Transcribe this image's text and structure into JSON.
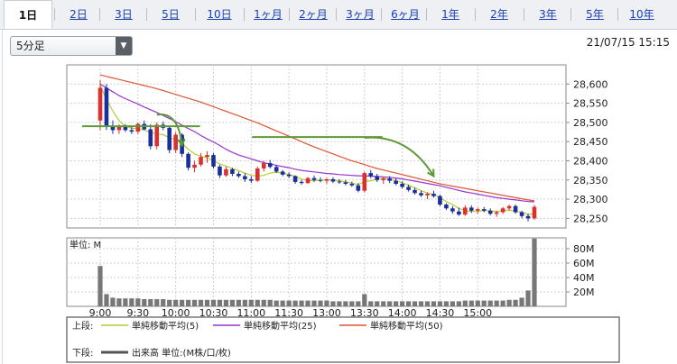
{
  "tabs": [
    "1日",
    "2日",
    "3日",
    "5日",
    "10日",
    "1ヶ月",
    "2ヶ月",
    "3ヶ月",
    "6ヶ月",
    "1年",
    "2年",
    "3年",
    "5年",
    "10年"
  ],
  "active_tab": 0,
  "interval_select": {
    "value": "5分足"
  },
  "datetime": "21/07/15 15:15",
  "legend": {
    "upper_label": "上段:",
    "lower_label": "下段:",
    "sma5": "単純移動平均(5)",
    "sma25": "単純移動平均(25)",
    "sma50": "単純移動平均(50)",
    "volume": "出来高 単位:(M株/口/枚)"
  },
  "colors": {
    "sma5": "#b8cc33",
    "sma25": "#9933cc",
    "sma50": "#dd5533",
    "up": "#d93030",
    "down": "#1a2f9a",
    "volume": "#777777",
    "annotation": "#5e9a3a"
  },
  "chart_data": [
    {
      "type": "candlestick",
      "title": "",
      "interval": "5分足",
      "x_ticks": [
        "9:00",
        "9:30",
        "10:00",
        "10:30",
        "11:00",
        "11:30",
        "13:00",
        "13:30",
        "14:00",
        "14:30",
        "15:00"
      ],
      "y_ticks": [
        28250,
        28300,
        28350,
        28400,
        28450,
        28500,
        28550,
        28600
      ],
      "ylim": [
        28225,
        28650
      ],
      "candles": [
        [
          28505,
          28610,
          28480,
          28590
        ],
        [
          28590,
          28600,
          28480,
          28490
        ],
        [
          28490,
          28505,
          28470,
          28480
        ],
        [
          28480,
          28495,
          28470,
          28488
        ],
        [
          28488,
          28495,
          28475,
          28480
        ],
        [
          28480,
          28490,
          28470,
          28476
        ],
        [
          28476,
          28500,
          28470,
          28496
        ],
        [
          28496,
          28505,
          28480,
          28482
        ],
        [
          28482,
          28495,
          28430,
          28438
        ],
        [
          28438,
          28500,
          28430,
          28494
        ],
        [
          28494,
          28502,
          28480,
          28486
        ],
        [
          28486,
          28490,
          28420,
          28428
        ],
        [
          28428,
          28475,
          28420,
          28468
        ],
        [
          28468,
          28472,
          28410,
          28418
        ],
        [
          28418,
          28422,
          28375,
          28382
        ],
        [
          28382,
          28400,
          28370,
          28390
        ],
        [
          28390,
          28420,
          28385,
          28410
        ],
        [
          28410,
          28425,
          28395,
          28415
        ],
        [
          28415,
          28420,
          28380,
          28385
        ],
        [
          28385,
          28390,
          28355,
          28362
        ],
        [
          28362,
          28385,
          28358,
          28378
        ],
        [
          28378,
          28382,
          28360,
          28366
        ],
        [
          28366,
          28372,
          28355,
          28360
        ],
        [
          28360,
          28368,
          28345,
          28352
        ],
        [
          28352,
          28360,
          28342,
          28348
        ],
        [
          28348,
          28385,
          28345,
          28380
        ],
        [
          28380,
          28400,
          28372,
          28394
        ],
        [
          28394,
          28402,
          28380,
          28384
        ],
        [
          28384,
          28390,
          28368,
          28372
        ],
        [
          28372,
          28376,
          28360,
          28364
        ],
        [
          28364,
          28370,
          28355,
          28360
        ],
        [
          28360,
          28362,
          28340,
          28345
        ],
        [
          28345,
          28350,
          28338,
          28342
        ],
        [
          28342,
          28358,
          28340,
          28355
        ],
        [
          28355,
          28362,
          28345,
          28350
        ],
        [
          28350,
          28357,
          28344,
          28348
        ],
        [
          28348,
          28355,
          28340,
          28352
        ],
        [
          28352,
          28357,
          28342,
          28346
        ],
        [
          28346,
          28352,
          28340,
          28344
        ],
        [
          28344,
          28350,
          28336,
          28340
        ],
        [
          28340,
          28346,
          28332,
          28336
        ],
        [
          28336,
          28342,
          28318,
          28322
        ],
        [
          28322,
          28372,
          28318,
          28368
        ],
        [
          28368,
          28376,
          28355,
          28360
        ],
        [
          28360,
          28366,
          28345,
          28350
        ],
        [
          28350,
          28358,
          28340,
          28354
        ],
        [
          28354,
          28360,
          28342,
          28348
        ],
        [
          28348,
          28354,
          28336,
          28340
        ],
        [
          28340,
          28346,
          28328,
          28332
        ],
        [
          28332,
          28338,
          28320,
          28324
        ],
        [
          28324,
          28330,
          28312,
          28316
        ],
        [
          28316,
          28322,
          28306,
          28310
        ],
        [
          28310,
          28318,
          28300,
          28314
        ],
        [
          28314,
          28322,
          28304,
          28308
        ],
        [
          28308,
          28312,
          28282,
          28286
        ],
        [
          28286,
          28290,
          28272,
          28276
        ],
        [
          28276,
          28282,
          28262,
          28268
        ],
        [
          28268,
          28278,
          28256,
          28260
        ],
        [
          28260,
          28284,
          28256,
          28278
        ],
        [
          28278,
          28284,
          28264,
          28270
        ],
        [
          28270,
          28278,
          28262,
          28274
        ],
        [
          28274,
          28280,
          28266,
          28270
        ],
        [
          28270,
          28276,
          28258,
          28262
        ],
        [
          28262,
          28270,
          28254,
          28266
        ],
        [
          28266,
          28280,
          28262,
          28276
        ],
        [
          28276,
          28286,
          28270,
          28282
        ],
        [
          28282,
          28286,
          28262,
          28266
        ],
        [
          28266,
          28270,
          28250,
          28256
        ],
        [
          28256,
          28262,
          28242,
          28250
        ],
        [
          28250,
          28285,
          28246,
          28280
        ]
      ],
      "sma5": [
        28597,
        28560,
        28530,
        28505,
        28490,
        28485,
        28484,
        28480,
        28474,
        28470,
        28468,
        28460,
        28455,
        28446,
        28430,
        28418,
        28412,
        28408,
        28400,
        28392,
        28386,
        28380,
        28374,
        28368,
        28362,
        28360,
        28362,
        28368,
        28370,
        28368,
        28364,
        28360,
        28352,
        28349,
        28348,
        28350,
        28350,
        28350,
        28348,
        28345,
        28342,
        28338,
        28346,
        28348,
        28352,
        28354,
        28352,
        28348,
        28343,
        28336,
        28330,
        28322,
        28316,
        28312,
        28304,
        28294,
        28286,
        28276,
        28270,
        28268,
        28268,
        28270,
        28270,
        28268,
        28270,
        28272,
        28268,
        28266,
        28260,
        28262
      ],
      "sma25": [
        28600,
        28590,
        28580,
        28570,
        28562,
        28555,
        28548,
        28540,
        28533,
        28526,
        28518,
        28510,
        28502,
        28493,
        28484,
        28476,
        28466,
        28457,
        28449,
        28440,
        28430,
        28422,
        28415,
        28410,
        28405,
        28400,
        28395,
        28392,
        28388,
        28385,
        28382,
        28378,
        28375,
        28373,
        28371,
        28369,
        28367,
        28366,
        28364,
        28363,
        28362,
        28361,
        28361,
        28360,
        28359,
        28358,
        28357,
        28355,
        28353,
        28350,
        28347,
        28344,
        28341,
        28338,
        28335,
        28331,
        28327,
        28323,
        28319,
        28316,
        28313,
        28310,
        28307,
        28304,
        28302,
        28300,
        28298,
        28296,
        28294,
        28293
      ],
      "sma50": [
        28624,
        28620,
        28616,
        28612,
        28608,
        28604,
        28600,
        28596,
        28592,
        28588,
        28583,
        28578,
        28573,
        28568,
        28563,
        28558,
        28553,
        28547,
        28541,
        28535,
        28529,
        28523,
        28517,
        28511,
        28505,
        28499,
        28492,
        28485,
        28478,
        28471,
        28464,
        28457,
        28450,
        28443,
        28436,
        28430,
        28424,
        28418,
        28412,
        28406,
        28400,
        28395,
        28390,
        28385,
        28380,
        28376,
        28372,
        28368,
        28364,
        28360,
        28356,
        28352,
        28348,
        28344,
        28340,
        28337,
        28334,
        28331,
        28328,
        28325,
        28322,
        28319,
        28316,
        28313,
        28310,
        28307,
        28304,
        28301,
        28298,
        28296
      ]
    },
    {
      "type": "bar",
      "title": "",
      "ylabel": "単位: M",
      "y_ticks": [
        "20M",
        "40M",
        "60M",
        "80M"
      ],
      "ylim": [
        0,
        95
      ],
      "values": [
        56,
        17,
        12,
        11,
        11,
        11,
        11,
        10,
        10,
        10,
        10,
        9,
        9,
        9,
        9,
        9,
        9,
        9,
        9,
        9,
        9,
        9,
        9,
        9,
        9,
        9,
        9,
        9,
        8,
        8,
        8,
        8,
        8,
        8,
        8,
        8,
        8,
        7,
        7,
        7,
        7,
        7,
        17,
        7,
        7,
        7,
        7,
        7,
        7,
        7,
        7,
        7,
        7,
        7,
        7,
        7,
        7,
        7,
        8,
        8,
        8,
        8,
        8,
        8,
        8,
        9,
        9,
        12,
        22,
        94
      ]
    }
  ],
  "annotations": {
    "horizontal_lines": [
      {
        "y": 28490,
        "from": 0,
        "to": 15
      },
      {
        "y": 28462,
        "from": 27,
        "to": 44
      }
    ],
    "arrows": [
      {
        "from_candle": 9,
        "from_y": 28520,
        "to_candle": 13,
        "to_y": 28440
      },
      {
        "from_candle": 42,
        "from_y": 28460,
        "to_candle": 53,
        "to_y": 28360
      }
    ]
  }
}
